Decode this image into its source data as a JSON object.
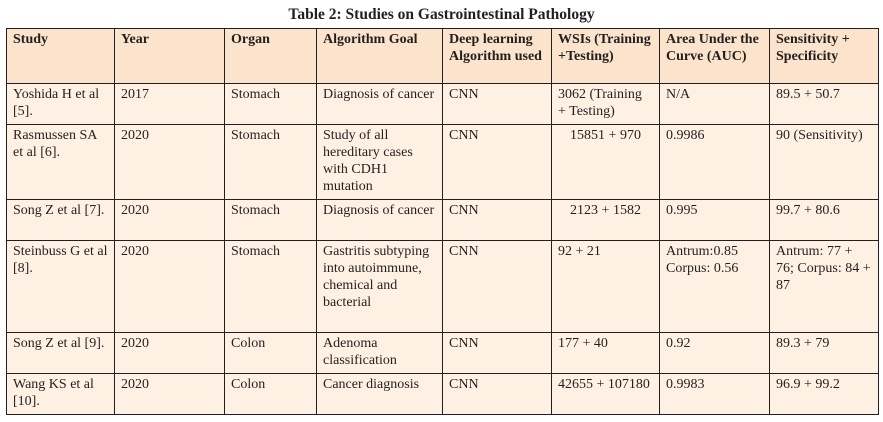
{
  "caption": "Table 2: Studies on Gastrointestinal Pathology",
  "headers": [
    "Study",
    "Year",
    "Organ",
    "Algorithm Goal",
    "Deep learning Algorithm used",
    "WSIs (Training +Testing)",
    "Area Under the Curve (AUC)",
    "Sensitivity + Specificity"
  ],
  "rows": [
    [
      "Yoshida H et al [5].",
      "2017",
      "Stomach",
      "Diagnosis of cancer",
      "CNN",
      "3062 (Training + Testing)",
      "N/A",
      "89.5 + 50.7"
    ],
    [
      "Rasmussen SA et al [6].",
      "2020",
      "Stomach",
      "Study of all hereditary cases with CDH1 mutation",
      "CNN",
      "15851 + 970",
      "0.9986",
      "90 (Sensitivity)"
    ],
    [
      "Song Z et al [7].",
      "2020",
      "Stomach",
      "Diagnosis of cancer",
      "CNN",
      "2123 + 1582",
      "0.995",
      "99.7 + 80.6"
    ],
    [
      "Steinbuss G et al [8].",
      "2020",
      "Stomach",
      "Gastritis subtyping into autoimmune, chemical and bacterial",
      "CNN",
      "92 + 21",
      "Antrum:0.85 Corpus: 0.56",
      "Antrum: 77 + 76; Corpus: 84 + 87"
    ],
    [
      "Song Z et al [9].",
      "2020",
      "Colon",
      "Adenoma classification",
      "CNN",
      "177 + 40",
      "0.92",
      "89.3 + 79"
    ],
    [
      "Wang KS et al [10].",
      "2020",
      "Colon",
      "Cancer diagnosis",
      "CNN",
      "42655 + 107180",
      "0.9983",
      "96.9 + 99.2"
    ]
  ]
}
